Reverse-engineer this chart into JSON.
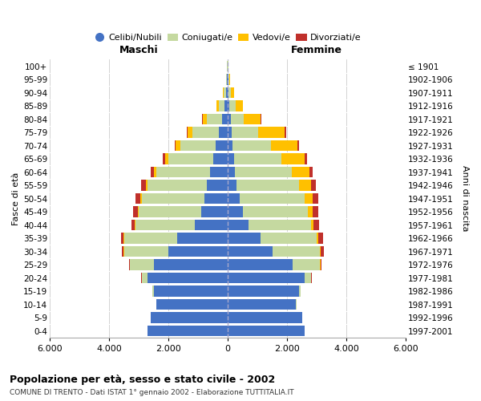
{
  "age_groups": [
    "0-4",
    "5-9",
    "10-14",
    "15-19",
    "20-24",
    "25-29",
    "30-34",
    "35-39",
    "40-44",
    "45-49",
    "50-54",
    "55-59",
    "60-64",
    "65-69",
    "70-74",
    "75-79",
    "80-84",
    "85-89",
    "90-94",
    "95-99",
    "100+"
  ],
  "birth_years": [
    "1997-2001",
    "1992-1996",
    "1987-1991",
    "1982-1986",
    "1977-1981",
    "1972-1976",
    "1967-1971",
    "1962-1966",
    "1957-1961",
    "1952-1956",
    "1947-1951",
    "1942-1946",
    "1937-1941",
    "1932-1936",
    "1927-1931",
    "1922-1926",
    "1917-1921",
    "1912-1916",
    "1907-1911",
    "1902-1906",
    "≤ 1901"
  ],
  "male_celibi": [
    2700,
    2600,
    2400,
    2500,
    2700,
    2500,
    2000,
    1700,
    1100,
    900,
    800,
    700,
    600,
    500,
    400,
    300,
    200,
    100,
    50,
    20,
    10
  ],
  "male_coniugati": [
    0,
    0,
    10,
    50,
    200,
    800,
    1500,
    1800,
    2000,
    2100,
    2100,
    2000,
    1800,
    1500,
    1200,
    900,
    500,
    200,
    80,
    30,
    10
  ],
  "male_vedovi": [
    0,
    0,
    0,
    0,
    5,
    5,
    10,
    20,
    30,
    40,
    50,
    60,
    80,
    100,
    150,
    150,
    150,
    80,
    30,
    10,
    2
  ],
  "male_divorziati": [
    0,
    0,
    0,
    5,
    10,
    30,
    50,
    80,
    120,
    150,
    150,
    150,
    120,
    80,
    50,
    30,
    15,
    10,
    5,
    3,
    1
  ],
  "female_celibi": [
    2600,
    2500,
    2300,
    2400,
    2600,
    2200,
    1500,
    1100,
    700,
    500,
    400,
    300,
    250,
    200,
    150,
    120,
    100,
    60,
    30,
    15,
    10
  ],
  "female_coniugati": [
    0,
    0,
    10,
    50,
    200,
    900,
    1600,
    1900,
    2100,
    2200,
    2200,
    2100,
    1900,
    1600,
    1300,
    900,
    450,
    200,
    80,
    25,
    5
  ],
  "female_vedovi": [
    0,
    0,
    0,
    5,
    10,
    20,
    30,
    60,
    100,
    150,
    250,
    400,
    600,
    800,
    900,
    900,
    550,
    250,
    100,
    30,
    5
  ],
  "female_divorziati": [
    0,
    0,
    0,
    5,
    20,
    50,
    100,
    150,
    180,
    200,
    200,
    180,
    120,
    80,
    50,
    40,
    20,
    10,
    5,
    3,
    1
  ],
  "colors": {
    "celibi": "#4472c4",
    "coniugati": "#c5d9a0",
    "vedovi": "#ffc000",
    "divorziati": "#c0302b"
  },
  "xlim": 6000,
  "xticks": [
    -6000,
    -4000,
    -2000,
    0,
    2000,
    4000,
    6000
  ],
  "xticklabels": [
    "6.000",
    "4.000",
    "2.000",
    "0",
    "2.000",
    "4.000",
    "6.000"
  ],
  "title_main": "Popolazione per età, sesso e stato civile - 2002",
  "title_sub": "COMUNE DI TRENTO - Dati ISTAT 1° gennaio 2002 - Elaborazione TUTTITALIA.IT",
  "ylabel_left": "Fasce di età",
  "ylabel_right": "Anni di nascita",
  "header_left": "Maschi",
  "header_right": "Femmine",
  "legend_labels": [
    "Celibi/Nubili",
    "Coniugati/e",
    "Vedovi/e",
    "Divorziati/e"
  ],
  "background_color": "#ffffff",
  "grid_color": "#cccccc"
}
